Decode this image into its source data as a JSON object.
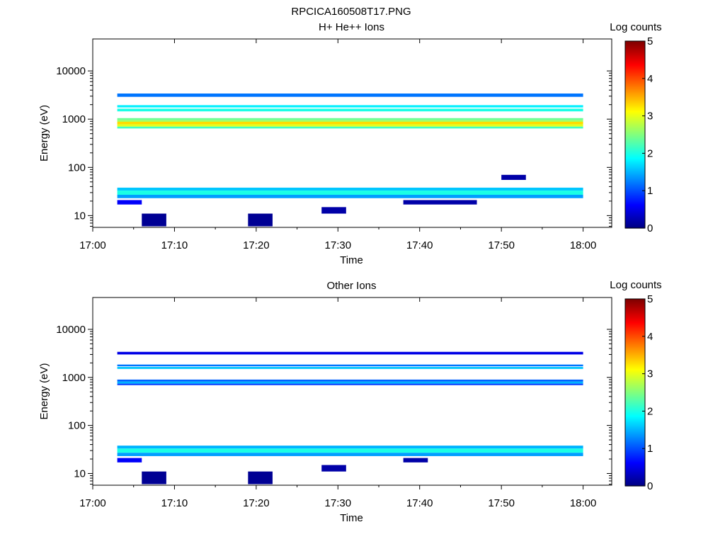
{
  "figure_title": "RPCICA160508T17.PNG",
  "chart_data": [
    {
      "type": "heatmap",
      "title": "H+ He++ Ions",
      "xlabel": "Time",
      "ylabel": "Energy (eV)",
      "x_ticks": [
        "17:00",
        "17:10",
        "17:20",
        "17:30",
        "17:40",
        "17:50",
        "18:00"
      ],
      "y_scale": "log",
      "y_ticks": [
        "10",
        "100",
        "1000",
        "10000"
      ],
      "colorbar": {
        "label": "Log counts",
        "ticks": [
          "0",
          "1",
          "2",
          "3",
          "4",
          "5"
        ],
        "range": [
          0,
          5
        ],
        "colormap": "jet"
      },
      "bins": [
        {
          "t": [
            "17:03",
            "18:00"
          ],
          "e": [
            33,
            38
          ],
          "v": 1.6
        },
        {
          "t": [
            "17:03",
            "18:00"
          ],
          "e": [
            27,
            33
          ],
          "v": 2.0
        },
        {
          "t": [
            "17:03",
            "18:00"
          ],
          "e": [
            23,
            27
          ],
          "v": 1.4
        },
        {
          "t": [
            "17:03",
            "17:06"
          ],
          "e": [
            17,
            21
          ],
          "v": 0.6
        },
        {
          "t": [
            "17:06",
            "17:09"
          ],
          "e": [
            6,
            11
          ],
          "v": 0.1
        },
        {
          "t": [
            "17:19",
            "17:22"
          ],
          "e": [
            6,
            11
          ],
          "v": 0.1
        },
        {
          "t": [
            "17:28",
            "17:31"
          ],
          "e": [
            11,
            15
          ],
          "v": 0.2
        },
        {
          "t": [
            "17:38",
            "17:47"
          ],
          "e": [
            17,
            21
          ],
          "v": 0.2
        },
        {
          "t": [
            "17:03",
            "18:00"
          ],
          "e": [
            2900,
            3400
          ],
          "v": 1.2
        },
        {
          "t": [
            "17:03",
            "18:00"
          ],
          "e": [
            1750,
            1950
          ],
          "v": 1.8
        },
        {
          "t": [
            "17:03",
            "18:00"
          ],
          "e": [
            1450,
            1650
          ],
          "v": 2.0
        },
        {
          "t": [
            "17:03",
            "18:00"
          ],
          "e": [
            950,
            1050
          ],
          "v": 2.4
        },
        {
          "t": [
            "17:03",
            "18:00"
          ],
          "e": [
            880,
            950
          ],
          "v": 2.7
        },
        {
          "t": [
            "17:03",
            "18:00"
          ],
          "e": [
            780,
            880
          ],
          "v": 3.3
        },
        {
          "t": [
            "17:03",
            "18:00"
          ],
          "e": [
            700,
            780
          ],
          "v": 3.0
        },
        {
          "t": [
            "17:03",
            "18:00"
          ],
          "e": [
            640,
            700
          ],
          "v": 2.2
        },
        {
          "t": [
            "17:50",
            "17:53"
          ],
          "e": [
            55,
            70
          ],
          "v": 0.2
        }
      ]
    },
    {
      "type": "heatmap",
      "title": "Other Ions",
      "xlabel": "Time",
      "ylabel": "Energy (eV)",
      "x_ticks": [
        "17:00",
        "17:10",
        "17:20",
        "17:30",
        "17:40",
        "17:50",
        "18:00"
      ],
      "y_scale": "log",
      "y_ticks": [
        "10",
        "100",
        "1000",
        "10000"
      ],
      "colorbar": {
        "label": "Log counts",
        "ticks": [
          "0",
          "1",
          "2",
          "3",
          "4",
          "5"
        ],
        "range": [
          0,
          5
        ],
        "colormap": "jet"
      },
      "bins": [
        {
          "t": [
            "17:03",
            "18:00"
          ],
          "e": [
            33,
            38
          ],
          "v": 1.5
        },
        {
          "t": [
            "17:03",
            "18:00"
          ],
          "e": [
            27,
            33
          ],
          "v": 2.0
        },
        {
          "t": [
            "17:03",
            "18:00"
          ],
          "e": [
            23,
            27
          ],
          "v": 1.4
        },
        {
          "t": [
            "17:03",
            "17:06"
          ],
          "e": [
            17,
            21
          ],
          "v": 0.6
        },
        {
          "t": [
            "17:06",
            "17:09"
          ],
          "e": [
            6,
            11
          ],
          "v": 0.1
        },
        {
          "t": [
            "17:19",
            "17:22"
          ],
          "e": [
            6,
            11
          ],
          "v": 0.1
        },
        {
          "t": [
            "17:28",
            "17:31"
          ],
          "e": [
            11,
            15
          ],
          "v": 0.2
        },
        {
          "t": [
            "17:38",
            "17:41"
          ],
          "e": [
            17,
            21
          ],
          "v": 0.2
        },
        {
          "t": [
            "17:03",
            "18:00"
          ],
          "e": [
            3000,
            3400
          ],
          "v": 0.5
        },
        {
          "t": [
            "17:03",
            "18:00"
          ],
          "e": [
            1700,
            1850
          ],
          "v": 1.2
        },
        {
          "t": [
            "17:03",
            "18:00"
          ],
          "e": [
            1500,
            1650
          ],
          "v": 1.6
        },
        {
          "t": [
            "17:03",
            "18:00"
          ],
          "e": [
            820,
            900
          ],
          "v": 1.1
        },
        {
          "t": [
            "17:03",
            "18:00"
          ],
          "e": [
            740,
            820
          ],
          "v": 1.5
        },
        {
          "t": [
            "17:03",
            "18:00"
          ],
          "e": [
            690,
            740
          ],
          "v": 0.9
        }
      ]
    }
  ]
}
